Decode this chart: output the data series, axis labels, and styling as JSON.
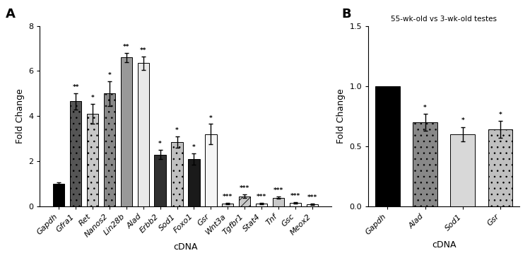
{
  "panel_A": {
    "categories": [
      "Gapdh",
      "Gfra1",
      "Ret",
      "Nanos2",
      "Lin28b",
      "Alad",
      "Erbb2",
      "Sod1",
      "Foxo1",
      "Gsr",
      "Wnt3a",
      "Tgfbr1",
      "Stat4",
      "Tnf",
      "Gsc",
      "Meox2"
    ],
    "values": [
      1.0,
      4.65,
      4.1,
      5.0,
      6.6,
      6.35,
      2.3,
      2.85,
      2.1,
      3.2,
      0.12,
      0.45,
      0.12,
      0.38,
      0.15,
      0.09
    ],
    "errors": [
      0.05,
      0.35,
      0.45,
      0.55,
      0.2,
      0.3,
      0.2,
      0.25,
      0.25,
      0.45,
      0.04,
      0.08,
      0.04,
      0.05,
      0.04,
      0.03
    ],
    "significance": [
      "",
      "**",
      "*",
      "*",
      "**",
      "**",
      "*",
      "*",
      "*",
      "*",
      "***",
      "***",
      "***",
      "***",
      "***",
      "***"
    ],
    "bar_styles": [
      {
        "fc": "#000000",
        "hatch": "",
        "ec": "#000000"
      },
      {
        "fc": "#555555",
        "hatch": "..",
        "ec": "#000000"
      },
      {
        "fc": "#c8c8c8",
        "hatch": "..",
        "ec": "#000000"
      },
      {
        "fc": "#888888",
        "hatch": "..",
        "ec": "#000000"
      },
      {
        "fc": "#999999",
        "hatch": "",
        "ec": "#000000"
      },
      {
        "fc": "#e8e8e8",
        "hatch": "",
        "ec": "#000000"
      },
      {
        "fc": "#303030",
        "hatch": "",
        "ec": "#000000"
      },
      {
        "fc": "#c0c0c0",
        "hatch": "..",
        "ec": "#000000"
      },
      {
        "fc": "#1a1a1a",
        "hatch": "",
        "ec": "#000000"
      },
      {
        "fc": "#f5f5f5",
        "hatch": "",
        "ec": "#000000"
      },
      {
        "fc": "#d8d8d8",
        "hatch": "",
        "ec": "#000000"
      },
      {
        "fc": "#c8c8c8",
        "hatch": "///",
        "ec": "#000000"
      },
      {
        "fc": "#f0f0f0",
        "hatch": "",
        "ec": "#000000"
      },
      {
        "fc": "#c8c8c8",
        "hatch": "",
        "ec": "#000000"
      },
      {
        "fc": "#f0f0f0",
        "hatch": "",
        "ec": "#000000"
      },
      {
        "fc": "#f8f8f8",
        "hatch": "",
        "ec": "#000000"
      }
    ],
    "ylim": [
      0,
      8
    ],
    "yticks": [
      0,
      2,
      4,
      6,
      8
    ],
    "ylabel": "Fold Change",
    "xlabel": "cDNA",
    "panel_label": "A"
  },
  "panel_B": {
    "categories": [
      "Gapdh",
      "Alad",
      "Sod1",
      "Gsr"
    ],
    "values": [
      1.0,
      0.7,
      0.6,
      0.64
    ],
    "errors": [
      0.0,
      0.07,
      0.06,
      0.07
    ],
    "significance": [
      "",
      "*",
      "*",
      "*"
    ],
    "bar_styles": [
      {
        "fc": "#000000",
        "hatch": "",
        "ec": "#000000"
      },
      {
        "fc": "#888888",
        "hatch": "..",
        "ec": "#000000"
      },
      {
        "fc": "#d8d8d8",
        "hatch": "",
        "ec": "#000000"
      },
      {
        "fc": "#c0c0c0",
        "hatch": "..",
        "ec": "#000000"
      }
    ],
    "ylim": [
      0,
      1.5
    ],
    "yticks": [
      0.0,
      0.5,
      1.0,
      1.5
    ],
    "ytick_labels": [
      "0.0",
      "0.5",
      "1.0",
      "1.5"
    ],
    "ylabel": "Fold Change",
    "xlabel": "cDNA",
    "title": "55-wk-old vs 3-wk-old testes",
    "panel_label": "B"
  },
  "fig_width": 7.5,
  "fig_height": 3.65,
  "dpi": 100
}
